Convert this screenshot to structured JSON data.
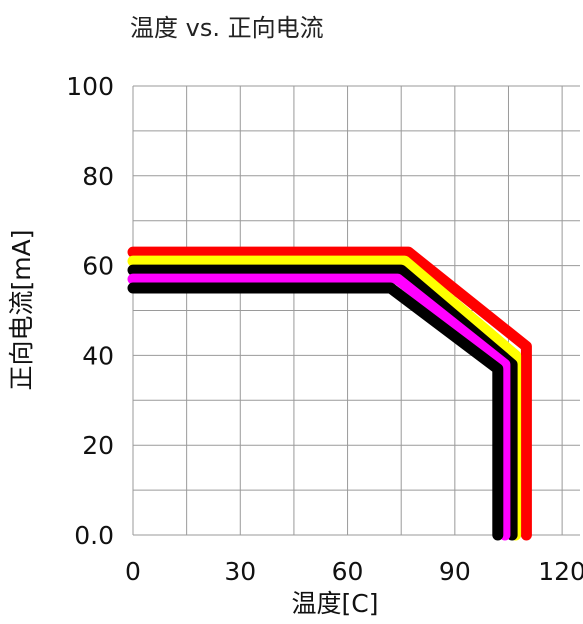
{
  "chart_data": {
    "type": "line",
    "title": "温度 vs. 正向电流",
    "xlabel": "温度[C]",
    "ylabel": "正向电流[mA]",
    "xlim": [
      0,
      125
    ],
    "ylim": [
      0,
      100
    ],
    "xticks": [
      0,
      30,
      60,
      90,
      120
    ],
    "xtick_labels": [
      "0",
      "30",
      "60",
      "90",
      "120"
    ],
    "yticks": [
      0,
      20,
      40,
      60,
      80,
      100
    ],
    "ytick_labels": [
      "0.0",
      "20",
      "40",
      "60",
      "80",
      "100"
    ],
    "grid": true,
    "legend": "none",
    "series": [
      {
        "color": "#ff0000",
        "points": [
          [
            0,
            63
          ],
          [
            77,
            63
          ],
          [
            110,
            42
          ],
          [
            110,
            0
          ]
        ]
      },
      {
        "color": "#ffff00",
        "points": [
          [
            0,
            61
          ],
          [
            76,
            61
          ],
          [
            107,
            40
          ],
          [
            107,
            0
          ]
        ]
      },
      {
        "color": "#000000",
        "points": [
          [
            0,
            59
          ],
          [
            75,
            59
          ],
          [
            106,
            38
          ],
          [
            106,
            0
          ]
        ]
      },
      {
        "color": "#ff00ff",
        "points": [
          [
            0,
            57
          ],
          [
            74,
            57
          ],
          [
            104,
            38
          ],
          [
            104,
            0
          ]
        ]
      },
      {
        "color": "#000000",
        "points": [
          [
            0,
            55
          ],
          [
            72,
            55
          ],
          [
            102,
            37
          ],
          [
            102,
            0
          ]
        ]
      }
    ]
  }
}
